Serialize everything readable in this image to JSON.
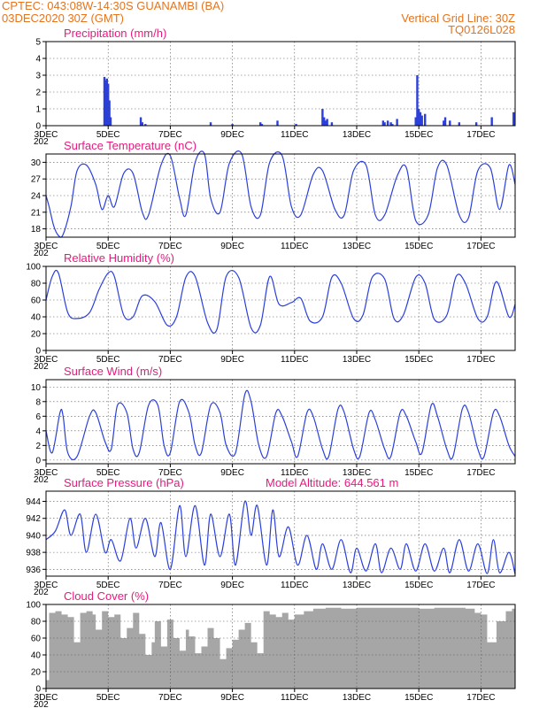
{
  "header": {
    "line1_left": "CPTEC:   043:08W-14:30S   GUANAMBI (BA)",
    "line2_left": "03DEC2020 30Z (GMT)",
    "line1_right": "Vertical Grid Line: 30Z",
    "line2_right": "TQ0126L028"
  },
  "colors": {
    "series": "#2a3fdc",
    "cloud": "#a6a6a6",
    "title": "#e6197f",
    "header": "#e8731b"
  },
  "x_axis": {
    "ticks": [
      3,
      5,
      7,
      9,
      11,
      13,
      15,
      17
    ],
    "tick_labels": [
      "3DEC",
      "5DEC",
      "7DEC",
      "9DEC",
      "11DEC",
      "13DEC",
      "15DEC",
      "17DEC"
    ],
    "stub_label": "202",
    "range_days": [
      3,
      18.1
    ]
  },
  "chart_data": [
    {
      "type": "bar",
      "title": "Precipitation (mm/h)",
      "ylim": [
        0,
        5
      ],
      "yticks": [
        0,
        1,
        2,
        3,
        4,
        5
      ],
      "x": [
        4.88,
        4.92,
        4.96,
        5.0,
        5.04,
        5.08,
        6.05,
        6.1,
        6.2,
        8.3,
        9.0,
        9.9,
        9.95,
        10.45,
        11.05,
        11.9,
        11.95,
        12.0,
        12.05,
        12.2,
        13.85,
        13.9,
        14.0,
        14.1,
        14.15,
        14.3,
        14.9,
        14.95,
        15.0,
        15.05,
        15.1,
        15.2,
        15.8,
        15.85,
        16.0,
        16.3,
        16.85,
        17.35,
        18.05
      ],
      "values": [
        2.9,
        2.7,
        2.8,
        2.5,
        1.5,
        0.5,
        0.5,
        0.2,
        0.1,
        0.2,
        0.1,
        0.2,
        0.1,
        0.3,
        0.1,
        1.0,
        0.5,
        0.3,
        0.4,
        0.2,
        0.3,
        0.2,
        0.3,
        0.2,
        0.1,
        0.4,
        0.5,
        3.0,
        1.0,
        0.8,
        0.6,
        0.7,
        0.3,
        0.5,
        0.3,
        0.2,
        0.2,
        0.5,
        0.8
      ]
    },
    {
      "type": "line",
      "title": "Surface Temperature (nC)",
      "ylim": [
        16.5,
        31.5
      ],
      "yticks": [
        18,
        21,
        24,
        27,
        30
      ],
      "x": [
        3.0,
        3.1,
        3.25,
        3.4,
        3.55,
        3.8,
        4.0,
        4.3,
        4.6,
        4.8,
        5.0,
        5.2,
        5.5,
        5.8,
        6.1,
        6.3,
        6.7,
        7.0,
        7.3,
        7.5,
        7.8,
        8.1,
        8.3,
        8.6,
        8.9,
        9.3,
        9.6,
        9.9,
        10.2,
        10.6,
        10.9,
        11.2,
        11.6,
        11.9,
        12.3,
        12.6,
        12.9,
        13.3,
        13.6,
        13.9,
        14.3,
        14.6,
        14.9,
        15.3,
        15.6,
        15.9,
        16.3,
        16.6,
        16.9,
        17.3,
        17.6,
        17.9,
        18.1
      ],
      "values": [
        24.0,
        22.0,
        18.5,
        16.8,
        17.0,
        22.0,
        28.5,
        29.5,
        26.0,
        21.5,
        24.0,
        22.0,
        28.0,
        28.0,
        21.0,
        20.5,
        29.5,
        31.2,
        23.5,
        20.5,
        30.0,
        31.5,
        23.5,
        21.0,
        29.8,
        31.5,
        22.0,
        20.5,
        30.0,
        31.2,
        22.0,
        20.5,
        27.8,
        28.5,
        21.5,
        20.5,
        28.5,
        29.5,
        20.5,
        20.5,
        27.5,
        29.0,
        19.5,
        20.5,
        29.0,
        29.5,
        20.5,
        20.0,
        28.5,
        29.0,
        21.5,
        29.5,
        26.0
      ]
    },
    {
      "type": "line",
      "title": "Relative Humidity (%)",
      "ylim": [
        0,
        100
      ],
      "yticks": [
        0,
        20,
        40,
        60,
        80,
        100
      ],
      "x": [
        3.0,
        3.2,
        3.4,
        3.7,
        4.0,
        4.4,
        4.7,
        5.0,
        5.2,
        5.5,
        5.8,
        6.1,
        6.5,
        6.9,
        7.2,
        7.5,
        7.8,
        8.2,
        8.5,
        8.8,
        9.2,
        9.6,
        9.9,
        10.2,
        10.5,
        10.9,
        11.2,
        11.5,
        11.9,
        12.2,
        12.5,
        12.9,
        13.2,
        13.5,
        13.9,
        14.2,
        14.5,
        14.9,
        15.2,
        15.5,
        15.9,
        16.2,
        16.5,
        16.9,
        17.2,
        17.5,
        17.9,
        18.1
      ],
      "values": [
        60.0,
        88.0,
        92.0,
        45.0,
        38.0,
        45.0,
        72.0,
        92.0,
        88.0,
        42.0,
        40.0,
        65.0,
        58.0,
        30.0,
        40.0,
        87.0,
        88.0,
        33.0,
        25.0,
        88.0,
        87.0,
        27.0,
        30.0,
        88.0,
        55.0,
        57.0,
        62.0,
        35.0,
        40.0,
        87.0,
        80.0,
        38.0,
        42.0,
        87.0,
        85.0,
        38.0,
        42.0,
        87.0,
        80.0,
        37.0,
        42.0,
        88.0,
        80.0,
        38.0,
        40.0,
        82.0,
        40.0,
        55.0
      ]
    },
    {
      "type": "line",
      "title": "Surface Wind (m/s)",
      "ylim": [
        -0.5,
        11
      ],
      "yticks": [
        0,
        2,
        4,
        6,
        8,
        10
      ],
      "x": [
        3.0,
        3.2,
        3.45,
        3.55,
        3.7,
        4.0,
        4.4,
        4.6,
        4.9,
        5.1,
        5.3,
        5.6,
        5.8,
        6.0,
        6.3,
        6.6,
        6.8,
        7.0,
        7.3,
        7.6,
        7.8,
        8.0,
        8.3,
        8.6,
        8.8,
        9.1,
        9.4,
        9.6,
        9.85,
        10.1,
        10.4,
        10.6,
        10.9,
        11.1,
        11.4,
        11.6,
        11.9,
        12.1,
        12.4,
        12.6,
        12.9,
        13.1,
        13.4,
        13.6,
        13.9,
        14.1,
        14.4,
        14.6,
        14.9,
        15.1,
        15.4,
        15.6,
        15.9,
        16.1,
        16.4,
        16.6,
        16.9,
        17.1,
        17.4,
        17.6,
        17.9,
        18.1
      ],
      "values": [
        4.0,
        1.0,
        6.5,
        6.0,
        1.0,
        0.5,
        6.0,
        6.5,
        2.5,
        1.5,
        7.5,
        6.5,
        1.5,
        1.0,
        7.5,
        7.5,
        2.0,
        1.0,
        8.0,
        6.5,
        2.0,
        1.0,
        7.5,
        6.5,
        2.0,
        1.0,
        9.0,
        8.0,
        2.0,
        0.5,
        6.5,
        6.0,
        2.5,
        0.5,
        6.5,
        6.0,
        1.5,
        0.5,
        7.0,
        6.5,
        1.5,
        0.5,
        6.5,
        5.5,
        1.5,
        0.5,
        6.5,
        6.0,
        2.5,
        1.0,
        7.5,
        6.0,
        1.5,
        0.5,
        7.0,
        6.5,
        1.5,
        0.5,
        6.5,
        6.0,
        2.0,
        0.5
      ]
    },
    {
      "type": "line",
      "title": "Surface Pressure (hPa)",
      "annotation": "Model Altitude: 644.561  m",
      "ylim": [
        935.2,
        945.2
      ],
      "yticks": [
        936,
        938,
        940,
        942,
        944
      ],
      "x": [
        3.0,
        3.3,
        3.6,
        3.8,
        4.1,
        4.3,
        4.6,
        4.9,
        5.1,
        5.4,
        5.7,
        5.9,
        6.2,
        6.5,
        6.7,
        7.0,
        7.3,
        7.5,
        7.8,
        8.1,
        8.3,
        8.6,
        8.9,
        9.1,
        9.4,
        9.6,
        9.8,
        10.1,
        10.3,
        10.5,
        10.8,
        11.1,
        11.4,
        11.7,
        11.9,
        12.2,
        12.5,
        12.8,
        13.0,
        13.3,
        13.6,
        13.8,
        14.1,
        14.4,
        14.6,
        14.9,
        15.2,
        15.5,
        15.8,
        16.0,
        16.3,
        16.6,
        16.9,
        17.2,
        17.4,
        17.6,
        17.9,
        18.1
      ],
      "values": [
        939.5,
        940.5,
        943.0,
        940.0,
        942.5,
        938.0,
        942.5,
        938.0,
        939.5,
        937.0,
        942.0,
        938.5,
        942.0,
        937.5,
        941.5,
        936.0,
        943.5,
        937.5,
        943.5,
        936.5,
        942.5,
        937.5,
        942.5,
        936.5,
        944.0,
        940.0,
        943.5,
        936.5,
        943.0,
        937.5,
        941.0,
        936.5,
        940.0,
        936.0,
        939.0,
        936.0,
        939.5,
        935.6,
        938.5,
        935.8,
        939.0,
        935.6,
        938.5,
        936.0,
        939.0,
        935.8,
        939.0,
        935.8,
        938.5,
        935.6,
        939.5,
        935.8,
        939.0,
        935.5,
        939.5,
        935.6,
        938.0,
        935.4
      ]
    },
    {
      "type": "area",
      "title": "Cloud Cover (%)",
      "ylim": [
        0,
        100
      ],
      "yticks": [
        0,
        20,
        40,
        60,
        80,
        100
      ],
      "x": [
        3.0,
        3.1,
        3.3,
        3.5,
        3.7,
        3.9,
        4.1,
        4.3,
        4.5,
        4.6,
        4.8,
        5.0,
        5.2,
        5.4,
        5.6,
        5.8,
        6.0,
        6.2,
        6.4,
        6.5,
        6.7,
        6.9,
        7.1,
        7.3,
        7.5,
        7.6,
        7.8,
        8.0,
        8.2,
        8.4,
        8.6,
        8.8,
        9.0,
        9.2,
        9.4,
        9.6,
        9.8,
        10.0,
        10.2,
        10.4,
        10.6,
        10.8,
        11.0,
        11.3,
        11.6,
        12.0,
        12.5,
        13.0,
        13.5,
        14.0,
        14.5,
        15.0,
        15.5,
        16.0,
        16.5,
        16.8,
        17.0,
        17.2,
        17.5,
        17.8,
        18.0,
        18.1
      ],
      "values": [
        10,
        90,
        92,
        88,
        85,
        55,
        90,
        92,
        88,
        70,
        92,
        85,
        88,
        60,
        72,
        90,
        65,
        40,
        55,
        80,
        50,
        82,
        60,
        45,
        70,
        62,
        42,
        50,
        72,
        60,
        35,
        48,
        58,
        70,
        78,
        55,
        42,
        92,
        88,
        85,
        90,
        82,
        88,
        92,
        95,
        96,
        95,
        96,
        96,
        96,
        96,
        95,
        96,
        96,
        95,
        90,
        88,
        55,
        80,
        92,
        95,
        96
      ]
    }
  ]
}
